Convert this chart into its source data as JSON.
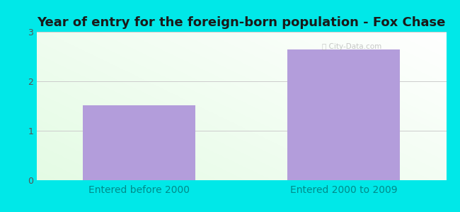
{
  "categories": [
    "Entered before 2000",
    "Entered 2000 to 2009"
  ],
  "values": [
    1.52,
    2.65
  ],
  "bar_color": "#b39ddb",
  "title": "Year of entry for the foreign-born population - Fox Chase",
  "title_fontsize": 13,
  "title_fontweight": "bold",
  "ylim": [
    0,
    3
  ],
  "yticks": [
    0,
    1,
    2,
    3
  ],
  "figure_bg_color": "#00e8e8",
  "grid_color": "#cccccc",
  "tick_label_color": "#008b8b",
  "ytick_label_color": "#555555",
  "tick_label_fontsize": 10,
  "bar_width": 0.55,
  "watermark": "ⓘ City-Data.com"
}
